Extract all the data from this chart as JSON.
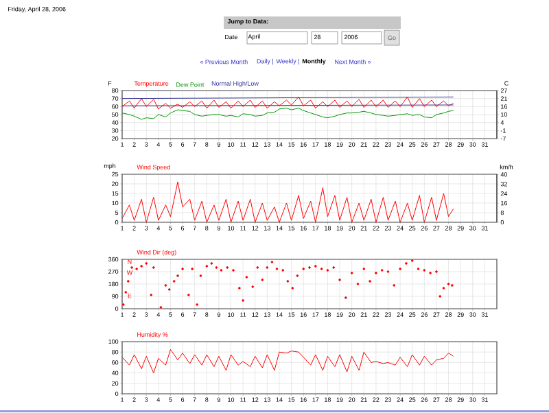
{
  "chart_data": [
    {
      "type": "line",
      "annotations": [
        "Friday, April 28, 2006",
        "Jump to Data:",
        "Date",
        "April",
        "28",
        "2006",
        "Go",
        "« Previous Month",
        "Daily |",
        "Weekly |",
        "Monthly",
        "Next Month »"
      ],
      "ylabel": "F",
      "y2label": "C",
      "legend": "top left",
      "grid": true,
      "x": [
        1,
        1.6,
        2,
        2.6,
        3,
        3.6,
        4,
        4.6,
        5,
        5.6,
        6,
        6.6,
        7,
        7.6,
        8,
        8.6,
        9,
        9.6,
        10,
        10.6,
        11,
        11.6,
        12,
        12.6,
        13,
        13.6,
        14,
        14.6,
        15,
        15.6,
        16,
        16.6,
        17,
        17.6,
        18,
        18.6,
        19,
        19.6,
        20,
        20.6,
        21,
        21.6,
        22,
        22.6,
        23,
        23.6,
        24,
        24.6,
        25,
        25.6,
        26,
        26.6,
        27,
        27.6,
        28,
        28.4
      ],
      "series": [
        {
          "name": "Temperature",
          "color": "#ff0000",
          "values": [
            60,
            67,
            58,
            70,
            60,
            69,
            57,
            64,
            58,
            63,
            59,
            66,
            60,
            67,
            58,
            68,
            59,
            66,
            58,
            67,
            60,
            68,
            59,
            67,
            58,
            66,
            61,
            68,
            62,
            72,
            61,
            68,
            58,
            66,
            60,
            68,
            59,
            67,
            60,
            69,
            59,
            68,
            60,
            68,
            59,
            67,
            60,
            72,
            59,
            70,
            60,
            68,
            60,
            67,
            61,
            64
          ]
        },
        {
          "name": "Dew Point",
          "color": "#009900",
          "values": [
            52,
            50,
            48,
            44,
            46,
            45,
            50,
            47,
            52,
            56,
            55,
            54,
            50,
            48,
            49,
            50,
            50,
            48,
            49,
            47,
            51,
            50,
            48,
            49,
            52,
            53,
            57,
            58,
            56,
            58,
            55,
            52,
            50,
            47,
            46,
            48,
            50,
            52,
            52,
            53,
            54,
            52,
            50,
            49,
            48,
            49,
            50,
            51,
            49,
            50,
            47,
            46,
            50,
            52,
            54,
            55
          ]
        },
        {
          "name": "Normal High/Low",
          "color": "#333399",
          "x": [
            1,
            28.4
          ],
          "values": [
            70,
            72
          ]
        },
        {
          "color": "#333399",
          "x": [
            1,
            28.4
          ],
          "values": [
            61,
            62
          ]
        }
      ],
      "xlim": [
        1,
        32
      ],
      "xticks": [
        1,
        2,
        3,
        4,
        5,
        6,
        7,
        8,
        9,
        10,
        11,
        12,
        13,
        14,
        15,
        16,
        17,
        18,
        19,
        20,
        21,
        22,
        23,
        24,
        25,
        26,
        27,
        28,
        29,
        30,
        31
      ],
      "ylim": [
        20,
        80
      ],
      "yticks": [
        20,
        30,
        40,
        50,
        60,
        70,
        80
      ],
      "y2lim": [
        -6.67,
        26.67
      ],
      "y2ticks": [
        {
          "value": -6.67,
          "label": "-7"
        },
        {
          "value": -1.11,
          "label": "-1"
        },
        {
          "value": 4.44,
          "label": "4"
        },
        {
          "value": 10,
          "label": "10"
        },
        {
          "value": 15.56,
          "label": "16"
        },
        {
          "value": 21.11,
          "label": "21"
        },
        {
          "value": 26.67,
          "label": "27"
        }
      ]
    },
    {
      "type": "line",
      "title": "Wind Speed",
      "ylabel": "mph",
      "y2label": "km/h",
      "grid": true,
      "x": [
        1,
        1.6,
        2,
        2.6,
        3,
        3.6,
        4,
        4.6,
        5,
        5.6,
        6,
        6.6,
        7,
        7.6,
        8,
        8.6,
        9,
        9.6,
        10,
        10.6,
        11,
        11.6,
        12,
        12.6,
        13,
        13.6,
        14,
        14.6,
        15,
        15.6,
        16,
        16.6,
        17,
        17.6,
        18,
        18.6,
        19,
        19.6,
        20,
        20.6,
        21,
        21.6,
        22,
        22.6,
        23,
        23.6,
        24,
        24.6,
        25,
        25.6,
        26,
        26.6,
        27,
        27.6,
        28,
        28.4
      ],
      "series": [
        {
          "color": "#ff0000",
          "values": [
            2,
            9,
            1,
            12,
            0,
            13,
            1,
            9,
            3,
            21,
            8,
            12,
            1,
            11,
            0,
            9,
            1,
            12,
            0,
            11,
            1,
            12,
            0,
            10,
            1,
            8,
            0,
            10,
            1,
            14,
            2,
            11,
            0,
            18,
            3,
            14,
            1,
            13,
            0,
            10,
            1,
            12,
            0,
            13,
            1,
            11,
            0,
            10,
            1,
            14,
            0,
            13,
            1,
            15,
            3,
            7
          ]
        }
      ],
      "xlim": [
        1,
        32
      ],
      "xticks": [
        1,
        2,
        3,
        4,
        5,
        6,
        7,
        8,
        9,
        10,
        11,
        12,
        13,
        14,
        15,
        16,
        17,
        18,
        19,
        20,
        21,
        22,
        23,
        24,
        25,
        26,
        27,
        28,
        29,
        30,
        31
      ],
      "ylim": [
        0,
        25
      ],
      "yticks": [
        0,
        5,
        10,
        15,
        20,
        25
      ],
      "y2lim": [
        0,
        40.23
      ],
      "y2ticks": [
        0,
        8,
        16,
        24,
        32,
        40
      ]
    },
    {
      "type": "scatter",
      "title": "Wind Dir (deg)",
      "grid": true,
      "marker": "circle",
      "annotations": [
        "N",
        "W",
        "E"
      ],
      "series": [
        {
          "color": "#ff0000",
          "x": [
            1.1,
            1.3,
            1.5,
            1.8,
            2.2,
            2.6,
            3,
            3.4,
            3.6,
            4.2,
            4.6,
            4.9,
            5.3,
            5.6,
            6,
            6.5,
            6.8,
            7.2,
            7.5,
            8,
            8.4,
            8.8,
            9.2,
            9.7,
            10.2,
            10.7,
            11,
            11.3,
            11.8,
            12.2,
            12.6,
            13,
            13.4,
            13.8,
            14.3,
            14.7,
            15.1,
            15.5,
            16,
            16.5,
            17,
            17.5,
            18,
            18.5,
            19,
            19.5,
            20,
            20.5,
            21,
            21.5,
            22,
            22.5,
            23,
            23.5,
            24,
            24.5,
            25,
            25.5,
            26,
            26.5,
            27,
            27.3,
            27.6,
            28,
            28.3
          ],
          "values": [
            30,
            120,
            200,
            300,
            290,
            310,
            330,
            100,
            300,
            10,
            170,
            140,
            200,
            240,
            290,
            100,
            290,
            30,
            240,
            310,
            330,
            300,
            280,
            300,
            280,
            150,
            60,
            230,
            160,
            300,
            210,
            300,
            340,
            290,
            280,
            200,
            150,
            240,
            290,
            300,
            310,
            290,
            280,
            300,
            210,
            80,
            260,
            180,
            290,
            200,
            260,
            280,
            270,
            170,
            290,
            330,
            350,
            290,
            280,
            260,
            270,
            90,
            150,
            180,
            170
          ]
        }
      ],
      "xlim": [
        1,
        32
      ],
      "xticks": [
        1,
        2,
        3,
        4,
        5,
        6,
        7,
        8,
        9,
        10,
        11,
        12,
        13,
        14,
        15,
        16,
        17,
        18,
        19,
        20,
        21,
        22,
        23,
        24,
        25,
        26,
        27,
        28,
        29,
        30,
        31
      ],
      "ylim": [
        0,
        360
      ],
      "yticks": [
        0,
        90,
        180,
        270,
        360
      ]
    },
    {
      "type": "line",
      "title": "Humidity %",
      "grid": true,
      "x": [
        1,
        1.6,
        2,
        2.6,
        3,
        3.6,
        4,
        4.6,
        5,
        5.6,
        6,
        6.6,
        7,
        7.6,
        8,
        8.6,
        9,
        9.6,
        10,
        10.6,
        11,
        11.6,
        12,
        12.6,
        13,
        13.6,
        14,
        14.6,
        15,
        15.6,
        16,
        16.6,
        17,
        17.6,
        18,
        18.6,
        19,
        19.6,
        20,
        20.6,
        21,
        21.6,
        22,
        22.6,
        23,
        23.6,
        24,
        24.6,
        25,
        25.6,
        26,
        26.6,
        27,
        27.6,
        28,
        28.4
      ],
      "series": [
        {
          "color": "#ff0000",
          "values": [
            70,
            55,
            75,
            48,
            72,
            40,
            68,
            55,
            85,
            65,
            78,
            58,
            75,
            55,
            75,
            52,
            72,
            45,
            75,
            55,
            62,
            52,
            72,
            50,
            75,
            45,
            80,
            78,
            82,
            80,
            70,
            55,
            75,
            45,
            72,
            52,
            75,
            42,
            72,
            45,
            80,
            60,
            62,
            58,
            60,
            55,
            70,
            52,
            75,
            55,
            72,
            55,
            65,
            68,
            78,
            72
          ]
        }
      ],
      "xlim": [
        1,
        32
      ],
      "xticks": [
        1,
        2,
        3,
        4,
        5,
        6,
        7,
        8,
        9,
        10,
        11,
        12,
        13,
        14,
        15,
        16,
        17,
        18,
        19,
        20,
        21,
        22,
        23,
        24,
        25,
        26,
        27,
        28,
        29,
        30,
        31
      ],
      "ylim": [
        0,
        100
      ],
      "yticks": [
        0,
        20,
        40,
        60,
        80,
        100
      ]
    }
  ]
}
